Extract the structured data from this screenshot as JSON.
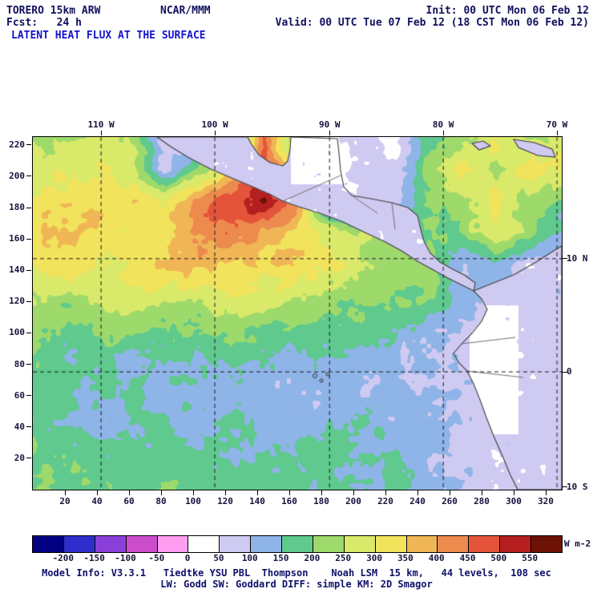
{
  "header": {
    "model": "TORERO 15km ARW",
    "center": "NCAR/MMM",
    "init": "Init: 00 UTC Mon 06 Feb 12",
    "fcst": "Fcst:   24 h",
    "valid": "Valid: 00 UTC Tue 07 Feb 12 (18 CST Mon 06 Feb 12)",
    "title": "LATENT HEAT FLUX AT THE SURFACE"
  },
  "footer": {
    "line1": "Model Info: V3.3.1   Tiedtke YSU PBL  Thompson    Noah LSM  15 km,   44 levels,  108 sec",
    "line2": "LW: Godd SW: Goddard DIFF: simple KM: 2D Smagor"
  },
  "chart_data": {
    "type": "heatmap",
    "title": "LATENT HEAT FLUX AT THE SURFACE",
    "units": "W m-2",
    "x_axis": {
      "ticks": [
        20,
        40,
        60,
        80,
        100,
        120,
        140,
        160,
        180,
        200,
        220,
        240,
        260,
        280,
        300,
        320
      ],
      "range": [
        0,
        330
      ]
    },
    "y_axis": {
      "ticks": [
        220,
        200,
        180,
        160,
        140,
        120,
        100,
        80,
        60,
        40,
        20
      ],
      "range": [
        0,
        225
      ]
    },
    "top_axis": {
      "labels": [
        "110 W",
        "100 W",
        "90 W",
        "80 W",
        "70 W"
      ],
      "positions": [
        0.129,
        0.344,
        0.561,
        0.776,
        0.991
      ]
    },
    "right_axis": {
      "labels": [
        "10 N",
        "0",
        "10 S"
      ],
      "positions": [
        0.345,
        0.666,
        0.993
      ]
    },
    "colorbar": {
      "label": "W m-2",
      "levels": [
        -200,
        -150,
        -100,
        -50,
        0,
        50,
        100,
        150,
        200,
        250,
        300,
        350,
        400,
        450,
        500,
        550
      ],
      "colors": [
        "#000080",
        "#2e2ecc",
        "#8a40d8",
        "#cc4dcc",
        "#ff9ef0",
        "#ffffff",
        "#cfcaf1",
        "#8fb4e8",
        "#5fc98e",
        "#9ed96b",
        "#d9e96a",
        "#f2e35c",
        "#f0b656",
        "#ed8a4e",
        "#e4543a",
        "#b51f1f",
        "#6e1205"
      ]
    },
    "grid": {
      "nx": 17,
      "ny": 12,
      "values": [
        [
          250,
          220,
          260,
          250,
          70,
          70,
          70,
          450,
          150,
          20,
          70,
          40,
          180,
          220,
          330,
          240,
          280
        ],
        [
          280,
          280,
          300,
          270,
          70,
          200,
          350,
          450,
          300,
          10,
          70,
          70,
          220,
          320,
          240,
          330,
          300
        ],
        [
          310,
          340,
          360,
          330,
          320,
          420,
          480,
          560,
          430,
          70,
          70,
          70,
          200,
          220,
          330,
          230,
          200
        ],
        [
          340,
          360,
          320,
          310,
          330,
          420,
          450,
          380,
          330,
          280,
          240,
          220,
          200,
          200,
          300,
          230,
          120
        ],
        [
          320,
          330,
          300,
          330,
          360,
          370,
          340,
          330,
          350,
          320,
          250,
          230,
          220,
          80,
          150,
          60,
          40
        ],
        [
          260,
          240,
          250,
          300,
          280,
          260,
          300,
          280,
          250,
          230,
          220,
          200,
          200,
          150,
          60,
          60,
          40
        ],
        [
          220,
          180,
          200,
          210,
          180,
          200,
          220,
          200,
          190,
          180,
          170,
          150,
          110,
          90,
          60,
          60,
          50
        ],
        [
          190,
          150,
          180,
          130,
          170,
          140,
          170,
          150,
          120,
          140,
          120,
          110,
          100,
          80,
          60,
          60,
          30
        ],
        [
          180,
          170,
          140,
          160,
          120,
          140,
          120,
          110,
          100,
          110,
          100,
          130,
          100,
          90,
          60,
          60,
          50
        ],
        [
          190,
          150,
          120,
          140,
          170,
          130,
          160,
          140,
          120,
          140,
          160,
          120,
          130,
          90,
          80,
          60,
          40
        ],
        [
          200,
          190,
          180,
          170,
          180,
          170,
          150,
          170,
          160,
          170,
          140,
          160,
          110,
          90,
          60,
          60,
          30
        ],
        [
          210,
          200,
          190,
          180,
          190,
          180,
          170,
          180,
          170,
          160,
          150,
          160,
          110,
          90,
          60,
          60,
          30
        ]
      ]
    },
    "map": {
      "land_polygons": {
        "mexico_central_america": [
          [
            155,
            0
          ],
          [
            172,
            12
          ],
          [
            195,
            26
          ],
          [
            222,
            40
          ],
          [
            248,
            51
          ],
          [
            272,
            61
          ],
          [
            295,
            71
          ],
          [
            312,
            80
          ],
          [
            332,
            87
          ],
          [
            358,
            95
          ],
          [
            385,
            105
          ],
          [
            412,
            118
          ],
          [
            438,
            130
          ],
          [
            460,
            142
          ],
          [
            480,
            155
          ],
          [
            500,
            166
          ],
          [
            518,
            176
          ],
          [
            538,
            186
          ],
          [
            550,
            192
          ],
          [
            552,
            182
          ],
          [
            538,
            172
          ],
          [
            522,
            164
          ],
          [
            508,
            156
          ],
          [
            496,
            145
          ],
          [
            488,
            130
          ],
          [
            484,
            115
          ],
          [
            480,
            98
          ],
          [
            468,
            88
          ],
          [
            448,
            82
          ],
          [
            422,
            77
          ],
          [
            398,
            73
          ],
          [
            388,
            62
          ],
          [
            384,
            42
          ],
          [
            382,
            20
          ],
          [
            380,
            2
          ],
          [
            322,
            0
          ],
          [
            321,
            15
          ],
          [
            318,
            30
          ],
          [
            312,
            36
          ],
          [
            296,
            32
          ],
          [
            282,
            22
          ],
          [
            272,
            8
          ],
          [
            268,
            0
          ]
        ],
        "south_america": [
          [
            605,
            440
          ],
          [
            596,
            422
          ],
          [
            586,
            398
          ],
          [
            575,
            373
          ],
          [
            566,
            350
          ],
          [
            558,
            328
          ],
          [
            550,
            308
          ],
          [
            542,
            292
          ],
          [
            532,
            282
          ],
          [
            525,
            270
          ],
          [
            535,
            258
          ],
          [
            548,
            245
          ],
          [
            560,
            230
          ],
          [
            567,
            215
          ],
          [
            560,
            202
          ],
          [
            550,
            192
          ],
          [
            575,
            182
          ],
          [
            600,
            172
          ],
          [
            628,
            156
          ],
          [
            650,
            142
          ],
          [
            660,
            136
          ],
          [
            660,
            440
          ]
        ],
        "island_1": [
          [
            548,
            8
          ],
          [
            562,
            5
          ],
          [
            571,
            11
          ],
          [
            557,
            16
          ]
        ],
        "island_2": [
          [
            600,
            3
          ],
          [
            626,
            7
          ],
          [
            648,
            15
          ],
          [
            652,
            25
          ],
          [
            630,
            23
          ],
          [
            606,
            13
          ]
        ]
      },
      "white_land_regions": [
        [
          322,
          0,
          64,
          58
        ],
        [
          545,
          210,
          60,
          160
        ]
      ],
      "borders": [
        [
          [
            312,
            80
          ],
          [
            384,
            48
          ]
        ],
        [
          [
            398,
            73
          ],
          [
            430,
            95
          ]
        ],
        [
          [
            448,
            82
          ],
          [
            452,
            115
          ]
        ],
        [
          [
            535,
            258
          ],
          [
            602,
            250
          ]
        ],
        [
          [
            542,
            292
          ],
          [
            612,
            300
          ]
        ]
      ],
      "galapagos_islands": [
        [
          352,
          298,
          2.5
        ],
        [
          360,
          304,
          2
        ],
        [
          368,
          296,
          2
        ]
      ],
      "grid_lines": {
        "lon_x": [
          0.129,
          0.344,
          0.561,
          0.776,
          0.991
        ],
        "lat_y": [
          0.345,
          0.666
        ]
      }
    }
  }
}
